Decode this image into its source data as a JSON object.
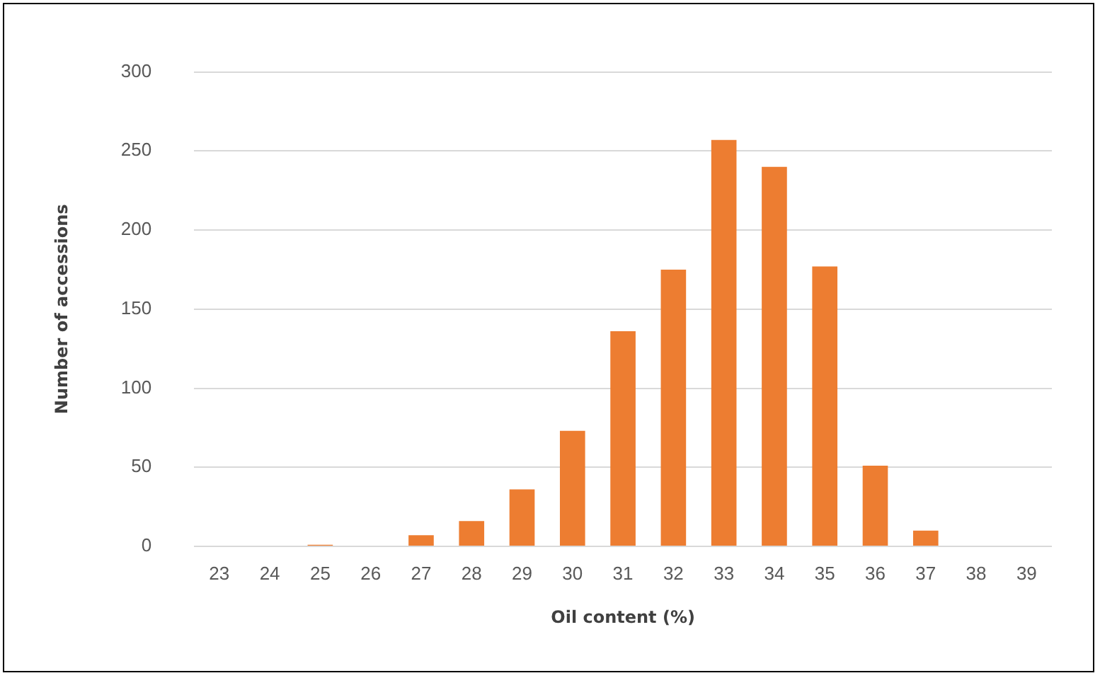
{
  "chart_data": {
    "type": "bar",
    "xlabel": "Oil content (%)",
    "ylabel": "Number of accessions",
    "categories": [
      "23",
      "24",
      "25",
      "26",
      "27",
      "28",
      "29",
      "30",
      "31",
      "32",
      "33",
      "34",
      "35",
      "36",
      "37",
      "38",
      "39"
    ],
    "values": [
      0,
      0,
      1,
      0,
      7,
      16,
      36,
      73,
      136,
      175,
      257,
      240,
      177,
      51,
      10,
      0,
      0
    ],
    "color": "#ed7d31",
    "ylim": [
      0,
      300
    ],
    "yticks": [
      0,
      50,
      100,
      150,
      200,
      250,
      300
    ],
    "grid": "y"
  }
}
